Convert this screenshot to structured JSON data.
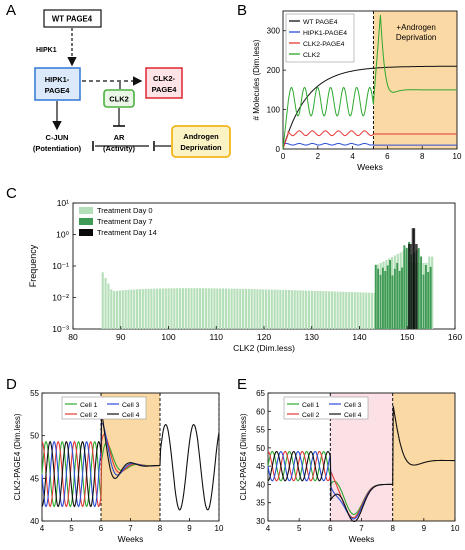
{
  "panel_labels": [
    "A",
    "B",
    "C",
    "D",
    "E"
  ],
  "panel_a": {
    "nodes": {
      "wt_page4": "WT PAGE4",
      "hipk1": "HIPK1",
      "hipk1_page4_line1": "HIPK1-",
      "hipk1_page4_line2": "PAGE4",
      "clk2": "CLK2",
      "clk2_page4_line1": "CLK2-",
      "clk2_page4_line2": "PAGE4",
      "cjun_line1": "C-JUN",
      "cjun_line2": "(Potentiation)",
      "ar_line1": "AR",
      "ar_line2": "(Activity)",
      "androgen_line1": "Androgen",
      "androgen_line2": "Deprivation"
    },
    "colors": {
      "hipk1_page4": "#3a7fd5",
      "clk2": "#4caf3f",
      "clk2_page4": "#e0313a",
      "androgen": "#f2b51c"
    }
  },
  "chart_data": [
    {
      "panel": "B",
      "type": "line",
      "ylabel": "# Molecules (Dim.less)",
      "xlabel": "Weeks",
      "xlim": [
        0,
        10
      ],
      "ylim": [
        0,
        350
      ],
      "xticks": [
        0,
        2,
        4,
        6,
        8,
        10
      ],
      "yticks": [
        0,
        100,
        200,
        300
      ],
      "annotation_line1": "+Androgen",
      "annotation_line2": "Deprivation",
      "shaded_region": [
        5.2,
        10
      ],
      "series": [
        {
          "name": "WT PAGE4",
          "color": "#111111",
          "description_x": [
            0,
            1,
            2,
            3,
            4,
            5,
            6,
            7,
            8,
            10
          ],
          "values": [
            0,
            88,
            140,
            170,
            187,
            197,
            203,
            206,
            208,
            210
          ]
        },
        {
          "name": "HIPK1-PAGE4",
          "color": "#2b4ed8",
          "values_level": 10
        },
        {
          "name": "CLK2-PAGE4",
          "color": "#e53935",
          "values_level": 38
        },
        {
          "name": "CLK2",
          "color": "#2ea82e",
          "values_range_before": [
            85,
            155
          ],
          "peak_after": 340,
          "settle_after": 150
        }
      ]
    },
    {
      "panel": "C",
      "type": "bar",
      "ylabel": "Frequency",
      "xlabel": "CLK2 (Dim.less)",
      "xlim": [
        80,
        160
      ],
      "xticks": [
        80,
        90,
        100,
        110,
        120,
        130,
        140,
        150,
        160
      ],
      "yscale": "log",
      "ylim_exponents": [
        -3,
        1
      ],
      "ytick_labels": [
        "10⁻³",
        "10⁻²",
        "10⁻¹",
        "10⁰",
        "10¹"
      ],
      "series": [
        {
          "name": "Treatment Day 0",
          "color": "#b5dfb8",
          "range": [
            86,
            155
          ]
        },
        {
          "name": "Treatment Day 7",
          "color": "#3f9a55",
          "range": [
            143,
            155
          ]
        },
        {
          "name": "Treatment Day 14",
          "color": "#0a0a0a",
          "range": [
            150,
            152
          ]
        }
      ]
    },
    {
      "panel": "D",
      "type": "line",
      "ylabel": "CLK2-PAGE4 (Dim.less)",
      "xlabel": "Weeks",
      "xlim": [
        4,
        10
      ],
      "ylim": [
        40,
        55
      ],
      "xticks": [
        4,
        5,
        6,
        7,
        8,
        9,
        10
      ],
      "yticks": [
        40,
        45,
        50,
        55
      ],
      "shaded_region": [
        6,
        8
      ],
      "dashed_lines": [
        6,
        8,
        10
      ],
      "series": [
        {
          "name": "Cell 1",
          "color": "#2ea82e"
        },
        {
          "name": "Cell 2",
          "color": "#e53935"
        },
        {
          "name": "Cell 3",
          "color": "#2b4ed8"
        },
        {
          "name": "Cell 4",
          "color": "#111111"
        }
      ]
    },
    {
      "panel": "E",
      "type": "line",
      "ylabel": "CLK2-PAGE4 (Dim.less)",
      "xlabel": "Weeks",
      "xlim": [
        4,
        10
      ],
      "ylim": [
        30,
        65
      ],
      "xticks": [
        4,
        5,
        6,
        7,
        8,
        9,
        10
      ],
      "yticks": [
        30,
        35,
        40,
        45,
        50,
        55,
        60,
        65
      ],
      "shaded_region": [
        6,
        8
      ],
      "dashed_lines": [
        6,
        8
      ],
      "series": [
        {
          "name": "Cell 1",
          "color": "#2ea82e"
        },
        {
          "name": "Cell 2",
          "color": "#e53935"
        },
        {
          "name": "Cell 3",
          "color": "#2b4ed8"
        },
        {
          "name": "Cell 4",
          "color": "#111111"
        }
      ]
    }
  ]
}
